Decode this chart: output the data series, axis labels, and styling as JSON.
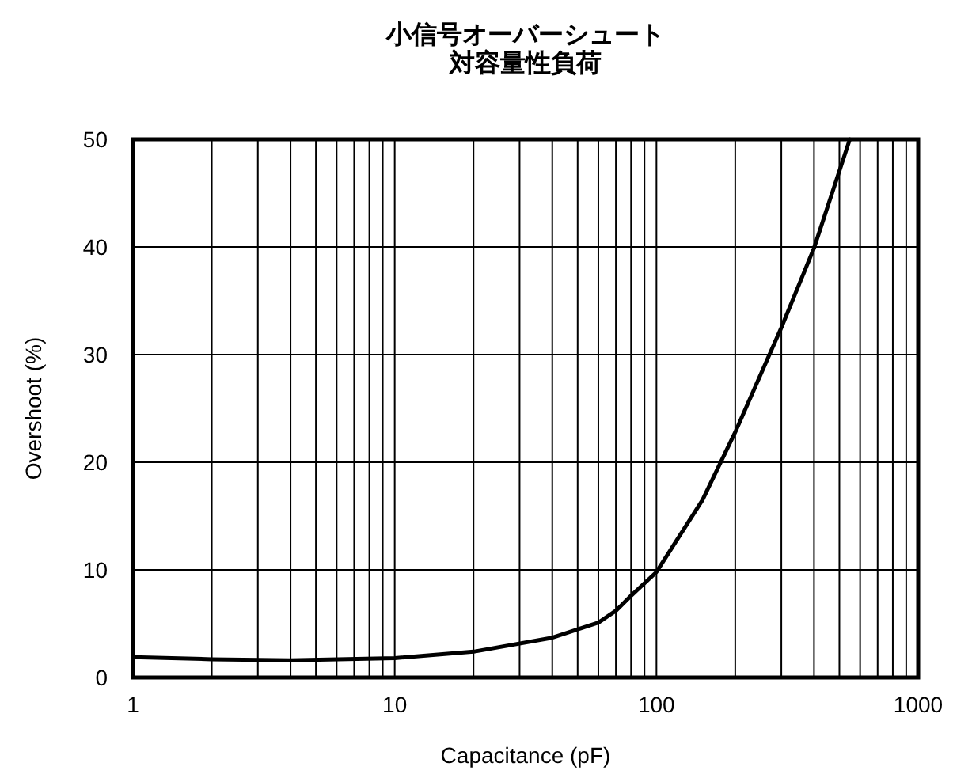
{
  "chart_data": {
    "type": "line",
    "title": "小信号オーバーシュート対容量性負荷",
    "xlabel": "Capacitance (pF)",
    "ylabel": "Overshoot (%)",
    "log": "x",
    "grid": true,
    "marker": "none",
    "line_style": "solid",
    "series": [
      {
        "color": "#000000",
        "x": [
          1,
          2,
          4,
          10,
          20,
          40,
          60,
          70,
          80,
          100,
          150,
          200,
          300,
          400,
          548
        ],
        "values": [
          1.9,
          1.7,
          1.6,
          1.8,
          2.4,
          3.7,
          5.1,
          6.2,
          7.6,
          9.8,
          16.5,
          22.8,
          32.5,
          39.9,
          50
        ]
      }
    ],
    "xlim": [
      1,
      1000
    ],
    "ylim": [
      0,
      50
    ],
    "xticks": [
      1,
      {
        "value": 2,
        "label": null
      },
      {
        "value": 3,
        "label": null
      },
      {
        "value": 4,
        "label": null
      },
      {
        "value": 5,
        "label": null
      },
      {
        "value": 6,
        "label": null
      },
      {
        "value": 7,
        "label": null
      },
      {
        "value": 8,
        "label": null
      },
      {
        "value": 9,
        "label": null
      },
      10,
      {
        "value": 20,
        "label": null
      },
      {
        "value": 30,
        "label": null
      },
      {
        "value": 40,
        "label": null
      },
      {
        "value": 50,
        "label": null
      },
      {
        "value": 60,
        "label": null
      },
      {
        "value": 70,
        "label": null
      },
      {
        "value": 80,
        "label": null
      },
      {
        "value": 90,
        "label": null
      },
      100,
      {
        "value": 200,
        "label": null
      },
      {
        "value": 300,
        "label": null
      },
      {
        "value": 400,
        "label": null
      },
      {
        "value": 500,
        "label": null
      },
      {
        "value": 600,
        "label": null
      },
      {
        "value": 700,
        "label": null
      },
      {
        "value": 800,
        "label": null
      },
      {
        "value": 900,
        "label": null
      },
      1000
    ],
    "yticks": [
      0,
      10,
      20,
      30,
      40,
      50
    ]
  }
}
